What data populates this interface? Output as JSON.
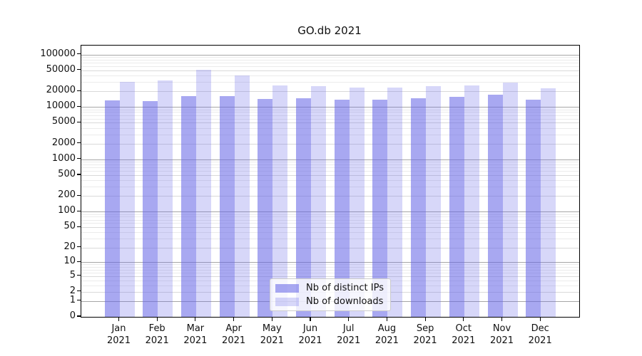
{
  "title": "GO.db 2021",
  "chart_data": {
    "type": "bar",
    "title": "GO.db 2021",
    "scale": "log1p",
    "grid": "on",
    "legend_position": "lower-center-inside",
    "categories": [
      "Jan",
      "Feb",
      "Mar",
      "Apr",
      "May",
      "Jun",
      "Jul",
      "Aug",
      "Sep",
      "Oct",
      "Nov",
      "Dec"
    ],
    "category_year": "2021",
    "series": [
      {
        "name": "Nb of distinct IPs",
        "color": "rgba(102,102,230,0.57)",
        "values": [
          13500,
          12800,
          16000,
          16000,
          14400,
          14700,
          14000,
          13700,
          14700,
          15800,
          17200,
          14000
        ]
      },
      {
        "name": "Nb of downloads",
        "color": "rgba(102,102,230,0.26)",
        "values": [
          30400,
          32000,
          50500,
          40300,
          25400,
          24900,
          23200,
          23700,
          24900,
          26000,
          29200,
          22800
        ]
      }
    ],
    "y_ticks": [
      0,
      1,
      2,
      5,
      10,
      20,
      50,
      100,
      200,
      500,
      1000,
      2000,
      5000,
      10000,
      20000,
      50000,
      100000
    ],
    "ylim": [
      0,
      148000
    ],
    "xlabel": "",
    "ylabel": ""
  },
  "colors": {
    "axis": "#000000",
    "grid_major": "#a6a6a6",
    "grid_minor": "#ebebeb",
    "bar_base": "#6666e6"
  }
}
